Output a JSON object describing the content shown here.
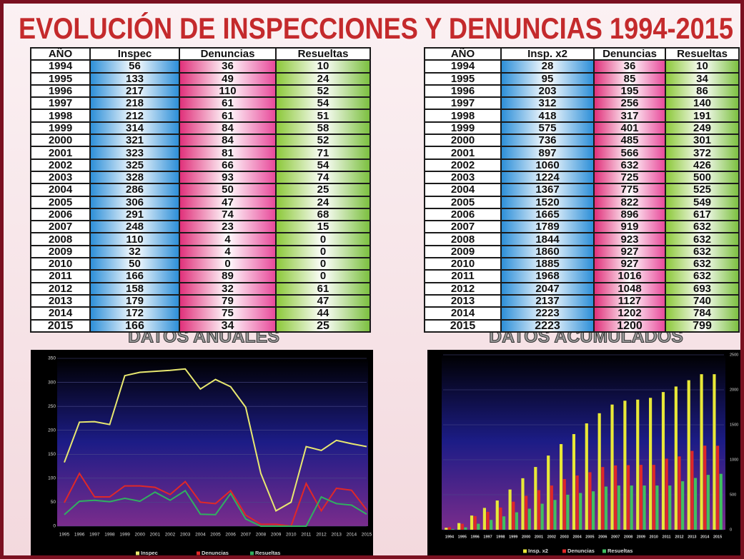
{
  "title": "EVOLUCIÓN DE INSPECCIONES Y DENUNCIAS 1994-2015",
  "tables": [
    {
      "header": [
        "AÑO",
        "Inspec",
        "Denuncias",
        "Resueltas"
      ],
      "rows": [
        [
          1994,
          56,
          36,
          10
        ],
        [
          1995,
          133,
          49,
          24
        ],
        [
          1996,
          217,
          110,
          52
        ],
        [
          1997,
          218,
          61,
          54
        ],
        [
          1998,
          212,
          61,
          51
        ],
        [
          1999,
          314,
          84,
          58
        ],
        [
          2000,
          321,
          84,
          52
        ],
        [
          2001,
          323,
          81,
          71
        ],
        [
          2002,
          325,
          66,
          54
        ],
        [
          2003,
          328,
          93,
          74
        ],
        [
          2004,
          286,
          50,
          25
        ],
        [
          2005,
          306,
          47,
          24
        ],
        [
          2006,
          291,
          74,
          68
        ],
        [
          2007,
          248,
          23,
          15
        ],
        [
          2008,
          110,
          4,
          0
        ],
        [
          2009,
          32,
          4,
          0
        ],
        [
          2010,
          50,
          0,
          0
        ],
        [
          2011,
          166,
          89,
          0
        ],
        [
          2012,
          158,
          32,
          61
        ],
        [
          2013,
          179,
          79,
          47
        ],
        [
          2014,
          172,
          75,
          44
        ],
        [
          2015,
          166,
          34,
          25
        ]
      ]
    },
    {
      "header": [
        "AÑO",
        "Insp. x2",
        "Denuncias",
        "Resueltas"
      ],
      "rows": [
        [
          1994,
          28,
          36,
          10
        ],
        [
          1995,
          95,
          85,
          34
        ],
        [
          1996,
          203,
          195,
          86
        ],
        [
          1997,
          312,
          256,
          140
        ],
        [
          1998,
          418,
          317,
          191
        ],
        [
          1999,
          575,
          401,
          249
        ],
        [
          2000,
          736,
          485,
          301
        ],
        [
          2001,
          897,
          566,
          372
        ],
        [
          2002,
          1060,
          632,
          426
        ],
        [
          2003,
          1224,
          725,
          500
        ],
        [
          2004,
          1367,
          775,
          525
        ],
        [
          2005,
          1520,
          822,
          549
        ],
        [
          2006,
          1665,
          896,
          617
        ],
        [
          2007,
          1789,
          919,
          632
        ],
        [
          2008,
          1844,
          923,
          632
        ],
        [
          2009,
          1860,
          927,
          632
        ],
        [
          2010,
          1885,
          927,
          632
        ],
        [
          2011,
          1968,
          1016,
          632
        ],
        [
          2012,
          2047,
          1048,
          693
        ],
        [
          2013,
          2137,
          1127,
          740
        ],
        [
          2014,
          2223,
          1202,
          784
        ],
        [
          2015,
          2223,
          1200,
          799
        ]
      ]
    }
  ],
  "section_labels": [
    "DATOS ANUALES",
    "DATOS ACUMULADOS"
  ],
  "chart_data": [
    {
      "type": "line",
      "categories": [
        "1995",
        "1996",
        "1997",
        "1998",
        "1999",
        "2000",
        "2001",
        "2002",
        "2003",
        "2004",
        "2005",
        "2006",
        "2007",
        "2008",
        "2009",
        "2010",
        "2011",
        "2012",
        "2013",
        "2014",
        "2015"
      ],
      "series": [
        {
          "name": "Inspec",
          "color": "#e8e870",
          "values": [
            133,
            217,
            218,
            212,
            314,
            321,
            323,
            325,
            328,
            286,
            306,
            291,
            248,
            110,
            32,
            50,
            166,
            158,
            179,
            172,
            166
          ]
        },
        {
          "name": "Denuncias",
          "color": "#e02828",
          "values": [
            49,
            110,
            61,
            61,
            84,
            84,
            81,
            66,
            93,
            50,
            47,
            74,
            23,
            4,
            4,
            0,
            89,
            32,
            79,
            75,
            34
          ]
        },
        {
          "name": "Resueltas",
          "color": "#30b060",
          "values": [
            24,
            52,
            54,
            51,
            58,
            52,
            71,
            54,
            74,
            25,
            24,
            68,
            15,
            0,
            0,
            0,
            0,
            61,
            47,
            44,
            25
          ]
        }
      ],
      "ylim": [
        0,
        350
      ],
      "yticks": [
        0,
        50,
        100,
        150,
        200,
        250,
        300,
        350
      ],
      "grid": true,
      "legend": "bottom",
      "y_axis": "left"
    },
    {
      "type": "bar",
      "categories": [
        "1994",
        "1995",
        "1996",
        "1997",
        "1998",
        "1999",
        "2000",
        "2001",
        "2002",
        "2003",
        "2004",
        "2005",
        "2006",
        "2007",
        "2008",
        "2009",
        "2010",
        "2011",
        "2012",
        "2013",
        "2014",
        "2015"
      ],
      "series": [
        {
          "name": "Insp. x2",
          "color": "#e8e838",
          "values": [
            28,
            95,
            203,
            312,
            418,
            575,
            736,
            897,
            1060,
            1224,
            1367,
            1520,
            1665,
            1789,
            1844,
            1860,
            1885,
            1968,
            2047,
            2137,
            2223,
            2223
          ]
        },
        {
          "name": "Denuncias",
          "color": "#e02828",
          "values": [
            36,
            85,
            195,
            256,
            317,
            401,
            485,
            566,
            632,
            725,
            775,
            822,
            896,
            919,
            923,
            927,
            927,
            1016,
            1048,
            1127,
            1202,
            1200
          ]
        },
        {
          "name": "Resueltas",
          "color": "#40c060",
          "values": [
            10,
            34,
            86,
            140,
            191,
            249,
            301,
            372,
            426,
            500,
            525,
            549,
            617,
            632,
            632,
            632,
            632,
            632,
            693,
            740,
            784,
            799
          ]
        }
      ],
      "ylim": [
        0,
        2500
      ],
      "yticks": [
        0,
        500,
        1000,
        1500,
        2000,
        2500
      ],
      "grid": true,
      "legend": "bottom",
      "y_axis": "right"
    }
  ]
}
